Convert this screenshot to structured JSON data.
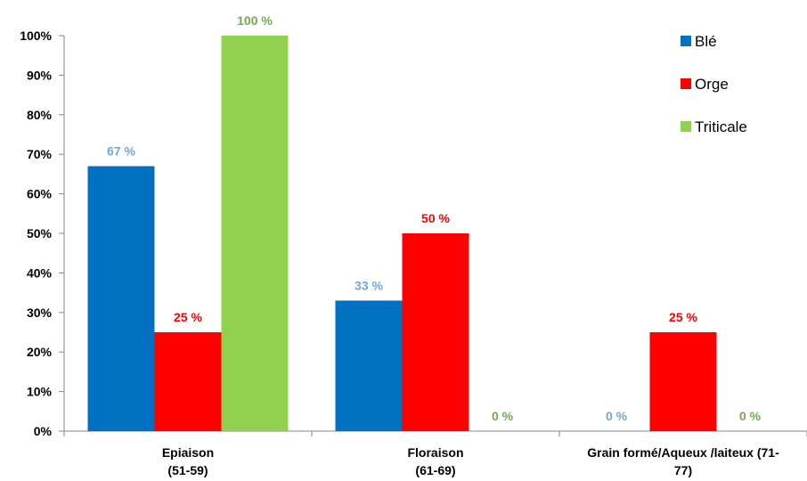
{
  "chart_data": {
    "type": "bar",
    "categories": [
      [
        "Epiaison",
        "(51-59)"
      ],
      [
        "Floraison",
        "(61-69)"
      ],
      [
        "Grain formé/Aqueux /laiteux (71-",
        "77)"
      ]
    ],
    "series": [
      {
        "name": "Blé",
        "color": "#0070C0",
        "label_color": "#6FA7DC",
        "values": [
          67,
          33,
          0
        ],
        "labels": [
          "67 %",
          "33 %",
          "0 %"
        ]
      },
      {
        "name": "Orge",
        "color": "#FF0000",
        "label_color": "#FF0000",
        "values": [
          25,
          50,
          25
        ],
        "labels": [
          "25 %",
          "50 %",
          "25 %"
        ]
      },
      {
        "name": "Triticale",
        "color": "#92D050",
        "label_color": "#70AD47",
        "values": [
          100,
          0,
          0
        ],
        "labels": [
          "100 %",
          "0 %",
          "0 %"
        ]
      }
    ],
    "ylim": [
      0,
      100
    ],
    "yticks": [
      "0%",
      "10%",
      "20%",
      "30%",
      "40%",
      "50%",
      "60%",
      "70%",
      "80%",
      "90%",
      "100%"
    ],
    "grid": false,
    "legend_position": "top-right",
    "title": "",
    "xlabel": "",
    "ylabel": ""
  }
}
